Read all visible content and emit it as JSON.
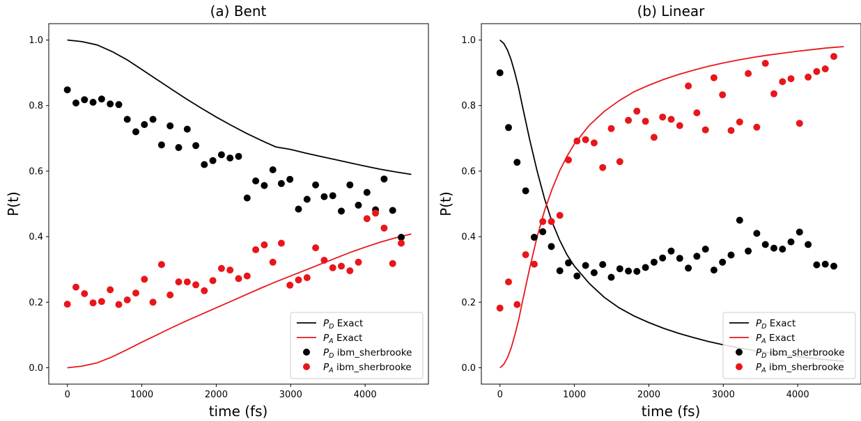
{
  "chart_data": [
    {
      "type": "scatter",
      "title": "(a) Bent",
      "xlabel": "time (fs)",
      "ylabel": "P(t)",
      "xlim": [
        -250,
        4850
      ],
      "ylim": [
        -0.05,
        1.05
      ],
      "xticks": [
        0,
        1000,
        2000,
        3000,
        4000
      ],
      "xtick_labels": [
        "0",
        "1000",
        "2000",
        "3000",
        "4000"
      ],
      "yticks": [
        0.0,
        0.2,
        0.4,
        0.6,
        0.8,
        1.0
      ],
      "ytick_labels": [
        "0.0",
        "0.2",
        "0.4",
        "0.6",
        "0.8",
        "1.0"
      ],
      "grid": false,
      "legend_position": "lower-right",
      "lines": [
        {
          "name": "P_D Exact",
          "legend_main": "P",
          "legend_sub": "D",
          "legend_rest": " Exact",
          "color": "#000000",
          "x": [
            0,
            200,
            400,
            600,
            800,
            1000,
            1200,
            1400,
            1600,
            1800,
            2000,
            2200,
            2400,
            2600,
            2800,
            3000,
            3200,
            3400,
            3600,
            3800,
            4000,
            4200,
            4400,
            4620
          ],
          "y": [
            1.0,
            0.995,
            0.985,
            0.965,
            0.94,
            0.91,
            0.88,
            0.85,
            0.82,
            0.792,
            0.765,
            0.74,
            0.716,
            0.694,
            0.674,
            0.666,
            0.655,
            0.645,
            0.635,
            0.625,
            0.615,
            0.606,
            0.598,
            0.59
          ]
        },
        {
          "name": "P_A Exact",
          "legend_main": "P",
          "legend_sub": "A",
          "legend_rest": " Exact",
          "color": "#e8161b",
          "x": [
            0,
            200,
            400,
            600,
            800,
            1000,
            1200,
            1400,
            1600,
            1800,
            2000,
            2200,
            2400,
            2600,
            2800,
            3000,
            3200,
            3400,
            3600,
            3800,
            4000,
            4200,
            4400,
            4620
          ],
          "y": [
            0.0,
            0.005,
            0.015,
            0.033,
            0.055,
            0.078,
            0.1,
            0.122,
            0.143,
            0.163,
            0.183,
            0.203,
            0.223,
            0.243,
            0.262,
            0.28,
            0.298,
            0.316,
            0.334,
            0.352,
            0.368,
            0.383,
            0.396,
            0.408
          ]
        }
      ],
      "scatter": [
        {
          "name": "P_D ibm_sherbrooke",
          "legend_main": "P",
          "legend_sub": "D",
          "legend_rest": " ibm_sherbrooke",
          "color": "#000000",
          "x": [
            0,
            115,
            230,
            345,
            460,
            575,
            690,
            805,
            920,
            1035,
            1150,
            1265,
            1380,
            1495,
            1610,
            1725,
            1840,
            1955,
            2070,
            2185,
            2300,
            2415,
            2530,
            2645,
            2760,
            2875,
            2990,
            3105,
            3220,
            3335,
            3450,
            3565,
            3680,
            3795,
            3910,
            4025,
            4140,
            4255,
            4370,
            4485
          ],
          "y": [
            0.848,
            0.808,
            0.818,
            0.81,
            0.82,
            0.805,
            0.803,
            0.758,
            0.72,
            0.742,
            0.758,
            0.68,
            0.738,
            0.672,
            0.728,
            0.678,
            0.62,
            0.632,
            0.65,
            0.64,
            0.645,
            0.518,
            0.57,
            0.556,
            0.604,
            0.562,
            0.575,
            0.484,
            0.514,
            0.558,
            0.522,
            0.525,
            0.478,
            0.558,
            0.496,
            0.535,
            0.482,
            0.576,
            0.48,
            0.398
          ]
        },
        {
          "name": "P_A ibm_sherbrooke",
          "legend_main": "P",
          "legend_sub": "A",
          "legend_rest": " ibm_sherbrooke",
          "color": "#e8161b",
          "x": [
            0,
            115,
            230,
            345,
            460,
            575,
            690,
            805,
            920,
            1035,
            1150,
            1265,
            1380,
            1495,
            1610,
            1725,
            1840,
            1955,
            2070,
            2185,
            2300,
            2415,
            2530,
            2645,
            2760,
            2875,
            2990,
            3105,
            3220,
            3335,
            3450,
            3565,
            3680,
            3795,
            3910,
            4025,
            4140,
            4255,
            4370,
            4485
          ],
          "y": [
            0.194,
            0.246,
            0.226,
            0.198,
            0.202,
            0.238,
            0.193,
            0.207,
            0.228,
            0.27,
            0.2,
            0.315,
            0.222,
            0.262,
            0.262,
            0.253,
            0.235,
            0.266,
            0.303,
            0.298,
            0.272,
            0.28,
            0.36,
            0.375,
            0.322,
            0.38,
            0.252,
            0.268,
            0.275,
            0.366,
            0.328,
            0.305,
            0.31,
            0.296,
            0.322,
            0.455,
            0.472,
            0.426,
            0.318,
            0.38
          ]
        }
      ]
    },
    {
      "type": "scatter",
      "title": "(b) Linear",
      "xlabel": "time (fs)",
      "ylabel": "P(t)",
      "xlim": [
        -250,
        4850
      ],
      "ylim": [
        -0.05,
        1.05
      ],
      "xticks": [
        0,
        1000,
        2000,
        3000,
        4000
      ],
      "xtick_labels": [
        "0",
        "1000",
        "2000",
        "3000",
        "4000"
      ],
      "yticks": [
        0.0,
        0.2,
        0.4,
        0.6,
        0.8,
        1.0
      ],
      "ytick_labels": [
        "0.0",
        "0.2",
        "0.4",
        "0.6",
        "0.8",
        "1.0"
      ],
      "grid": false,
      "legend_position": "lower-right",
      "lines": [
        {
          "name": "P_D Exact",
          "legend_main": "P",
          "legend_sub": "D",
          "legend_rest": " Exact",
          "color": "#000000",
          "x": [
            0,
            50,
            100,
            150,
            200,
            250,
            300,
            400,
            500,
            600,
            700,
            800,
            900,
            1000,
            1200,
            1400,
            1600,
            1800,
            2000,
            2200,
            2400,
            2600,
            2800,
            3000,
            3200,
            3400,
            3600,
            3800,
            4000,
            4200,
            4400,
            4620
          ],
          "y": [
            1.0,
            0.99,
            0.97,
            0.94,
            0.9,
            0.855,
            0.8,
            0.695,
            0.6,
            0.515,
            0.445,
            0.39,
            0.345,
            0.31,
            0.257,
            0.215,
            0.183,
            0.158,
            0.138,
            0.12,
            0.105,
            0.092,
            0.08,
            0.07,
            0.061,
            0.053,
            0.046,
            0.04,
            0.034,
            0.029,
            0.024,
            0.02
          ]
        },
        {
          "name": "P_A Exact",
          "legend_main": "P",
          "legend_sub": "A",
          "legend_rest": " Exact",
          "color": "#e8161b",
          "x": [
            0,
            50,
            100,
            150,
            200,
            250,
            300,
            400,
            500,
            600,
            700,
            800,
            900,
            1000,
            1200,
            1400,
            1600,
            1800,
            2000,
            2200,
            2400,
            2600,
            2800,
            3000,
            3200,
            3400,
            3600,
            3800,
            4000,
            4200,
            4400,
            4620
          ],
          "y": [
            0.0,
            0.01,
            0.03,
            0.06,
            0.1,
            0.145,
            0.2,
            0.305,
            0.4,
            0.48,
            0.545,
            0.6,
            0.645,
            0.683,
            0.74,
            0.782,
            0.815,
            0.842,
            0.862,
            0.88,
            0.895,
            0.908,
            0.92,
            0.93,
            0.939,
            0.947,
            0.954,
            0.96,
            0.966,
            0.971,
            0.976,
            0.98
          ]
        }
      ],
      "scatter": [
        {
          "name": "P_D ibm_sherbrooke",
          "legend_main": "P",
          "legend_sub": "D",
          "legend_rest": " ibm_sherbrooke",
          "color": "#000000",
          "x": [
            0,
            115,
            230,
            345,
            460,
            575,
            690,
            805,
            920,
            1035,
            1150,
            1265,
            1380,
            1495,
            1610,
            1725,
            1840,
            1955,
            2070,
            2185,
            2300,
            2415,
            2530,
            2645,
            2760,
            2875,
            2990,
            3105,
            3220,
            3335,
            3450,
            3565,
            3680,
            3795,
            3910,
            4025,
            4140,
            4255,
            4370,
            4485
          ],
          "y": [
            0.9,
            0.733,
            0.627,
            0.54,
            0.398,
            0.415,
            0.37,
            0.296,
            0.32,
            0.28,
            0.312,
            0.29,
            0.315,
            0.276,
            0.302,
            0.295,
            0.294,
            0.306,
            0.322,
            0.335,
            0.356,
            0.334,
            0.304,
            0.34,
            0.362,
            0.298,
            0.322,
            0.344,
            0.45,
            0.356,
            0.41,
            0.376,
            0.365,
            0.362,
            0.384,
            0.414,
            0.376,
            0.314,
            0.316,
            0.31
          ]
        },
        {
          "name": "P_A ibm_sherbrooke",
          "legend_main": "P",
          "legend_sub": "A",
          "legend_rest": " ibm_sherbrooke",
          "color": "#e8161b",
          "x": [
            0,
            115,
            230,
            345,
            460,
            575,
            690,
            805,
            920,
            1035,
            1150,
            1265,
            1380,
            1495,
            1610,
            1725,
            1840,
            1955,
            2070,
            2185,
            2300,
            2415,
            2530,
            2645,
            2760,
            2875,
            2990,
            3105,
            3220,
            3335,
            3450,
            3565,
            3680,
            3795,
            3910,
            4025,
            4140,
            4255,
            4370,
            4485
          ],
          "y": [
            0.182,
            0.262,
            0.193,
            0.345,
            0.316,
            0.446,
            0.446,
            0.465,
            0.634,
            0.692,
            0.696,
            0.686,
            0.611,
            0.73,
            0.629,
            0.755,
            0.783,
            0.752,
            0.703,
            0.765,
            0.758,
            0.739,
            0.86,
            0.778,
            0.726,
            0.885,
            0.833,
            0.724,
            0.75,
            0.898,
            0.734,
            0.929,
            0.836,
            0.873,
            0.882,
            0.746,
            0.887,
            0.904,
            0.912,
            0.95
          ]
        }
      ]
    }
  ]
}
